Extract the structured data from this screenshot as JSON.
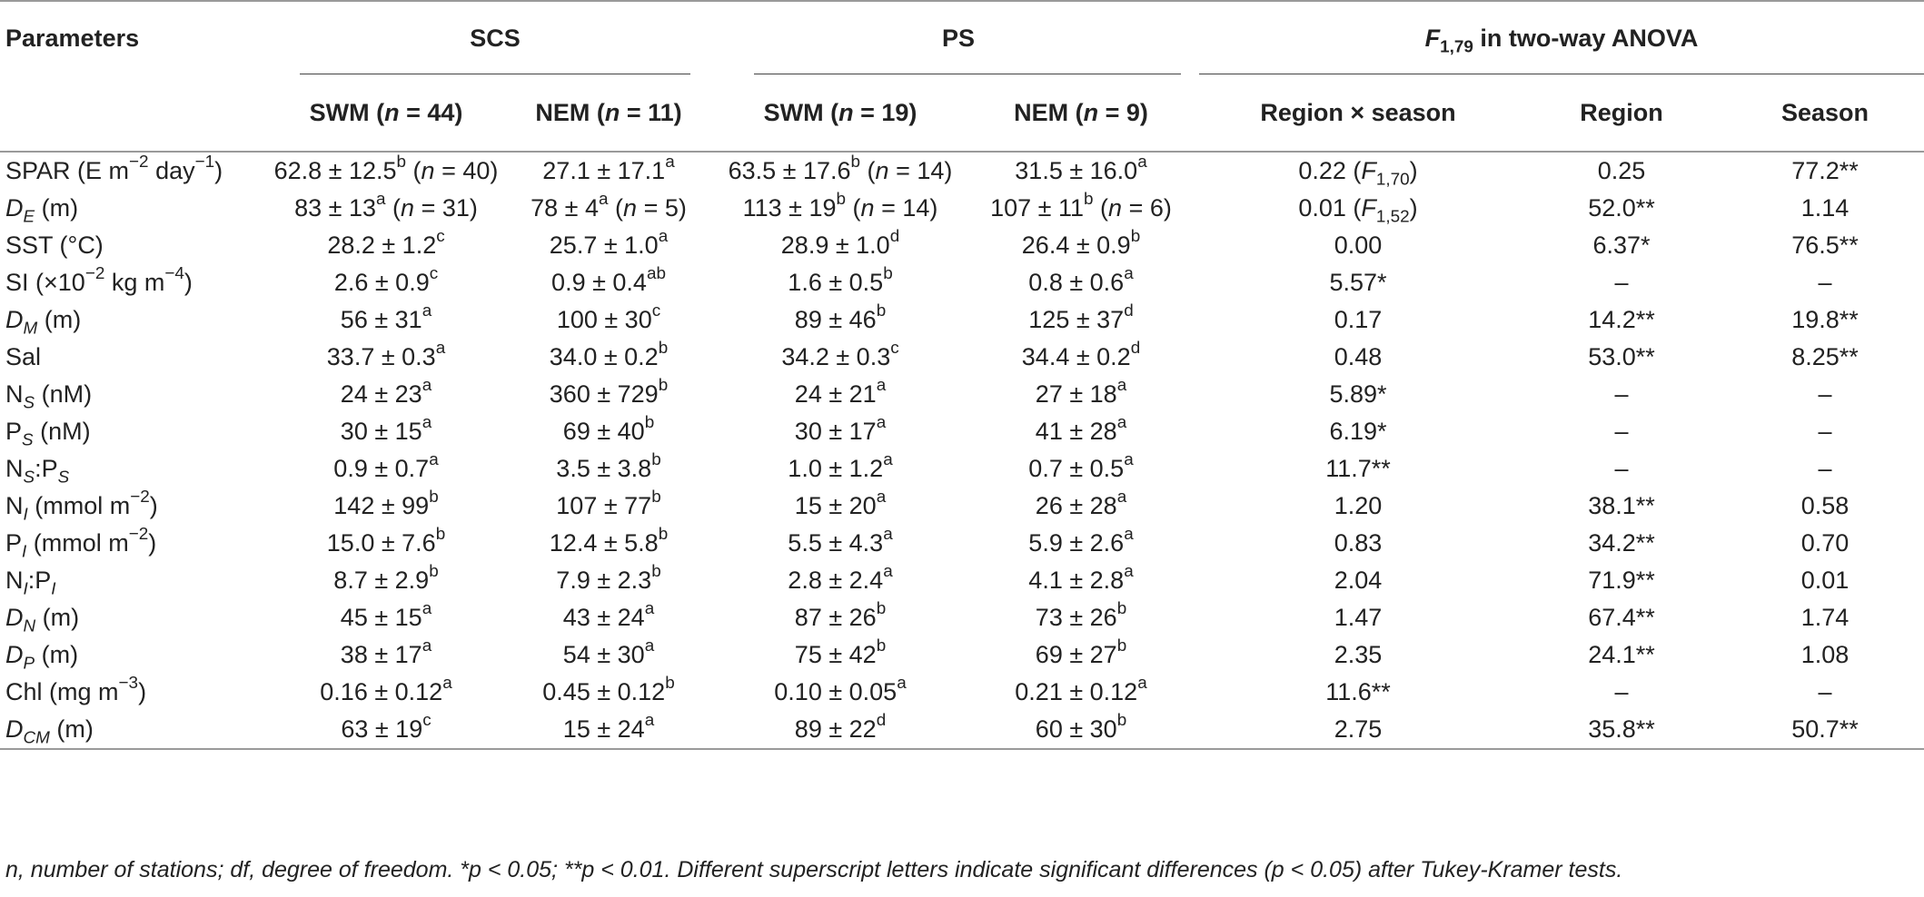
{
  "header": {
    "parameters": "Parameters",
    "scs": "SCS",
    "ps": "PS",
    "anova_F": "F",
    "anova_sub": "1,79",
    "anova_rest": " in two-way ANOVA",
    "scs_swm_a": "SWM (",
    "scs_swm_n": "n",
    "scs_swm_b": " = 44)",
    "scs_nem_a": "NEM (",
    "scs_nem_n": "n",
    "scs_nem_b": " = 11)",
    "ps_swm_a": "SWM (",
    "ps_swm_n": "n",
    "ps_swm_b": " = 19)",
    "ps_nem_a": "NEM (",
    "ps_nem_n": "n",
    "ps_nem_b": " = 9)",
    "region_season": "Region × season",
    "region": "Region",
    "season": "Season"
  },
  "rows": [
    {
      "p": [
        "SPAR (E m",
        "−2",
        " day",
        "−1",
        ")"
      ],
      "c1": [
        "62.8 ± 12.5",
        "b",
        " (",
        "n",
        " = 40)"
      ],
      "c2": [
        "27.1 ± 17.1",
        "a"
      ],
      "c3": [
        "63.5 ± 17.6",
        "b",
        " (",
        "n",
        " = 14)"
      ],
      "c4": [
        "31.5 ± 16.0",
        "a"
      ],
      "rs": [
        "0.22 (",
        "F",
        "1,70",
        ")"
      ],
      "reg": "0.25",
      "sea": "77.2**"
    },
    {
      "p": [
        "D",
        "E",
        " (m)"
      ],
      "c1": [
        "83 ± 13",
        "a",
        " (",
        "n",
        " = 31)"
      ],
      "c2": [
        "78 ± 4",
        "a",
        " (",
        "n",
        " = 5)"
      ],
      "c3": [
        "113 ± 19",
        "b",
        " (",
        "n",
        " = 14)"
      ],
      "c4": [
        "107 ± 11",
        "b",
        " (",
        "n",
        " = 6)"
      ],
      "rs": [
        "0.01 (",
        "F",
        "1,52",
        ")"
      ],
      "reg": "52.0**",
      "sea": "1.14"
    },
    {
      "p": [
        "SST (°C)"
      ],
      "c1": [
        "28.2 ± 1.2",
        "c"
      ],
      "c2": [
        "25.7 ± 1.0",
        "a"
      ],
      "c3": [
        "28.9 ± 1.0",
        "d"
      ],
      "c4": [
        "26.4 ± 0.9",
        "b"
      ],
      "rs": [
        "0.00"
      ],
      "reg": "6.37*",
      "sea": "76.5**"
    },
    {
      "p": [
        "SI (×10",
        "−2",
        " kg m",
        "−4",
        ")"
      ],
      "c1": [
        "2.6 ± 0.9",
        "c"
      ],
      "c2": [
        "0.9 ± 0.4",
        "ab"
      ],
      "c3": [
        "1.6 ± 0.5",
        "b"
      ],
      "c4": [
        "0.8 ± 0.6",
        "a"
      ],
      "rs": [
        "5.57*"
      ],
      "reg": "–",
      "sea": "–"
    },
    {
      "p": [
        "D",
        "M",
        " (m)"
      ],
      "c1": [
        "56 ± 31",
        "a"
      ],
      "c2": [
        "100 ± 30",
        "c"
      ],
      "c3": [
        "89 ± 46",
        "b"
      ],
      "c4": [
        "125 ± 37",
        "d"
      ],
      "rs": [
        "0.17"
      ],
      "reg": "14.2**",
      "sea": "19.8**"
    },
    {
      "p": [
        "Sal"
      ],
      "c1": [
        "33.7 ± 0.3",
        "a"
      ],
      "c2": [
        "34.0 ± 0.2",
        "b"
      ],
      "c3": [
        "34.2 ± 0.3",
        "c"
      ],
      "c4": [
        "34.4 ± 0.2",
        "d"
      ],
      "rs": [
        "0.48"
      ],
      "reg": "53.0**",
      "sea": "8.25**"
    },
    {
      "p": [
        "N",
        "S",
        " (nM)"
      ],
      "c1": [
        "24 ± 23",
        "a"
      ],
      "c2": [
        "360 ± 729",
        "b"
      ],
      "c3": [
        "24 ± 21",
        "a"
      ],
      "c4": [
        "27 ± 18",
        "a"
      ],
      "rs": [
        "5.89*"
      ],
      "reg": "–",
      "sea": "–"
    },
    {
      "p": [
        "P",
        "S",
        " (nM)"
      ],
      "c1": [
        "30 ± 15",
        "a"
      ],
      "c2": [
        "69 ± 40",
        "b"
      ],
      "c3": [
        "30 ± 17",
        "a"
      ],
      "c4": [
        "41 ± 28",
        "a"
      ],
      "rs": [
        "6.19*"
      ],
      "reg": "–",
      "sea": "–"
    },
    {
      "p": [
        "N",
        "S",
        ":P",
        "S"
      ],
      "c1": [
        "0.9 ± 0.7",
        "a"
      ],
      "c2": [
        "3.5 ± 3.8",
        "b"
      ],
      "c3": [
        "1.0 ± 1.2",
        "a"
      ],
      "c4": [
        "0.7 ± 0.5",
        "a"
      ],
      "rs": [
        "11.7**"
      ],
      "reg": "–",
      "sea": "–"
    },
    {
      "p": [
        "N",
        "I",
        " (mmol m",
        "−2",
        ")"
      ],
      "c1": [
        "142 ± 99",
        "b"
      ],
      "c2": [
        "107 ± 77",
        "b"
      ],
      "c3": [
        "15 ± 20",
        "a"
      ],
      "c4": [
        "26 ± 28",
        "a"
      ],
      "rs": [
        "1.20"
      ],
      "reg": "38.1**",
      "sea": "0.58"
    },
    {
      "p": [
        "P",
        "I",
        " (mmol m",
        "−2",
        ")"
      ],
      "c1": [
        "15.0 ± 7.6",
        "b"
      ],
      "c2": [
        "12.4 ± 5.8",
        "b"
      ],
      "c3": [
        "5.5 ± 4.3",
        "a"
      ],
      "c4": [
        "5.9 ± 2.6",
        "a"
      ],
      "rs": [
        "0.83"
      ],
      "reg": "34.2**",
      "sea": "0.70"
    },
    {
      "p": [
        "N",
        "I",
        ":P",
        "I"
      ],
      "c1": [
        "8.7 ± 2.9",
        "b"
      ],
      "c2": [
        "7.9 ± 2.3",
        "b"
      ],
      "c3": [
        "2.8 ± 2.4",
        "a"
      ],
      "c4": [
        "4.1 ± 2.8",
        "a"
      ],
      "rs": [
        "2.04"
      ],
      "reg": "71.9**",
      "sea": "0.01"
    },
    {
      "p": [
        "D",
        "N",
        " (m)"
      ],
      "c1": [
        "45 ± 15",
        "a"
      ],
      "c2": [
        "43 ± 24",
        "a"
      ],
      "c3": [
        "87 ± 26",
        "b"
      ],
      "c4": [
        "73 ± 26",
        "b"
      ],
      "rs": [
        "1.47"
      ],
      "reg": "67.4**",
      "sea": "1.74"
    },
    {
      "p": [
        "D",
        "P",
        " (m)"
      ],
      "c1": [
        "38 ± 17",
        "a"
      ],
      "c2": [
        "54 ± 30",
        "a"
      ],
      "c3": [
        "75 ± 42",
        "b"
      ],
      "c4": [
        "69 ± 27",
        "b"
      ],
      "rs": [
        "2.35"
      ],
      "reg": "24.1**",
      "sea": "1.08"
    },
    {
      "p": [
        "Chl (mg m",
        "−3",
        ")"
      ],
      "c1": [
        "0.16 ± 0.12",
        "a"
      ],
      "c2": [
        "0.45 ± 0.12",
        "b"
      ],
      "c3": [
        "0.10 ± 0.05",
        "a"
      ],
      "c4": [
        "0.21 ± 0.12",
        "a"
      ],
      "rs": [
        "11.6**"
      ],
      "reg": "–",
      "sea": "–"
    },
    {
      "p": [
        "D",
        "CM",
        " (m)"
      ],
      "c1": [
        "63 ± 19",
        "c"
      ],
      "c2": [
        "15 ± 24",
        "a"
      ],
      "c3": [
        "89 ± 22",
        "d"
      ],
      "c4": [
        "60 ± 30",
        "b"
      ],
      "rs": [
        "2.75"
      ],
      "reg": "35.8**",
      "sea": "50.7**"
    }
  ],
  "footnote": "n, number of stations; df, degree of freedom. *p < 0.05; **p < 0.01. Different superscript letters indicate significant differences (p < 0.05) after Tukey-Kramer tests."
}
